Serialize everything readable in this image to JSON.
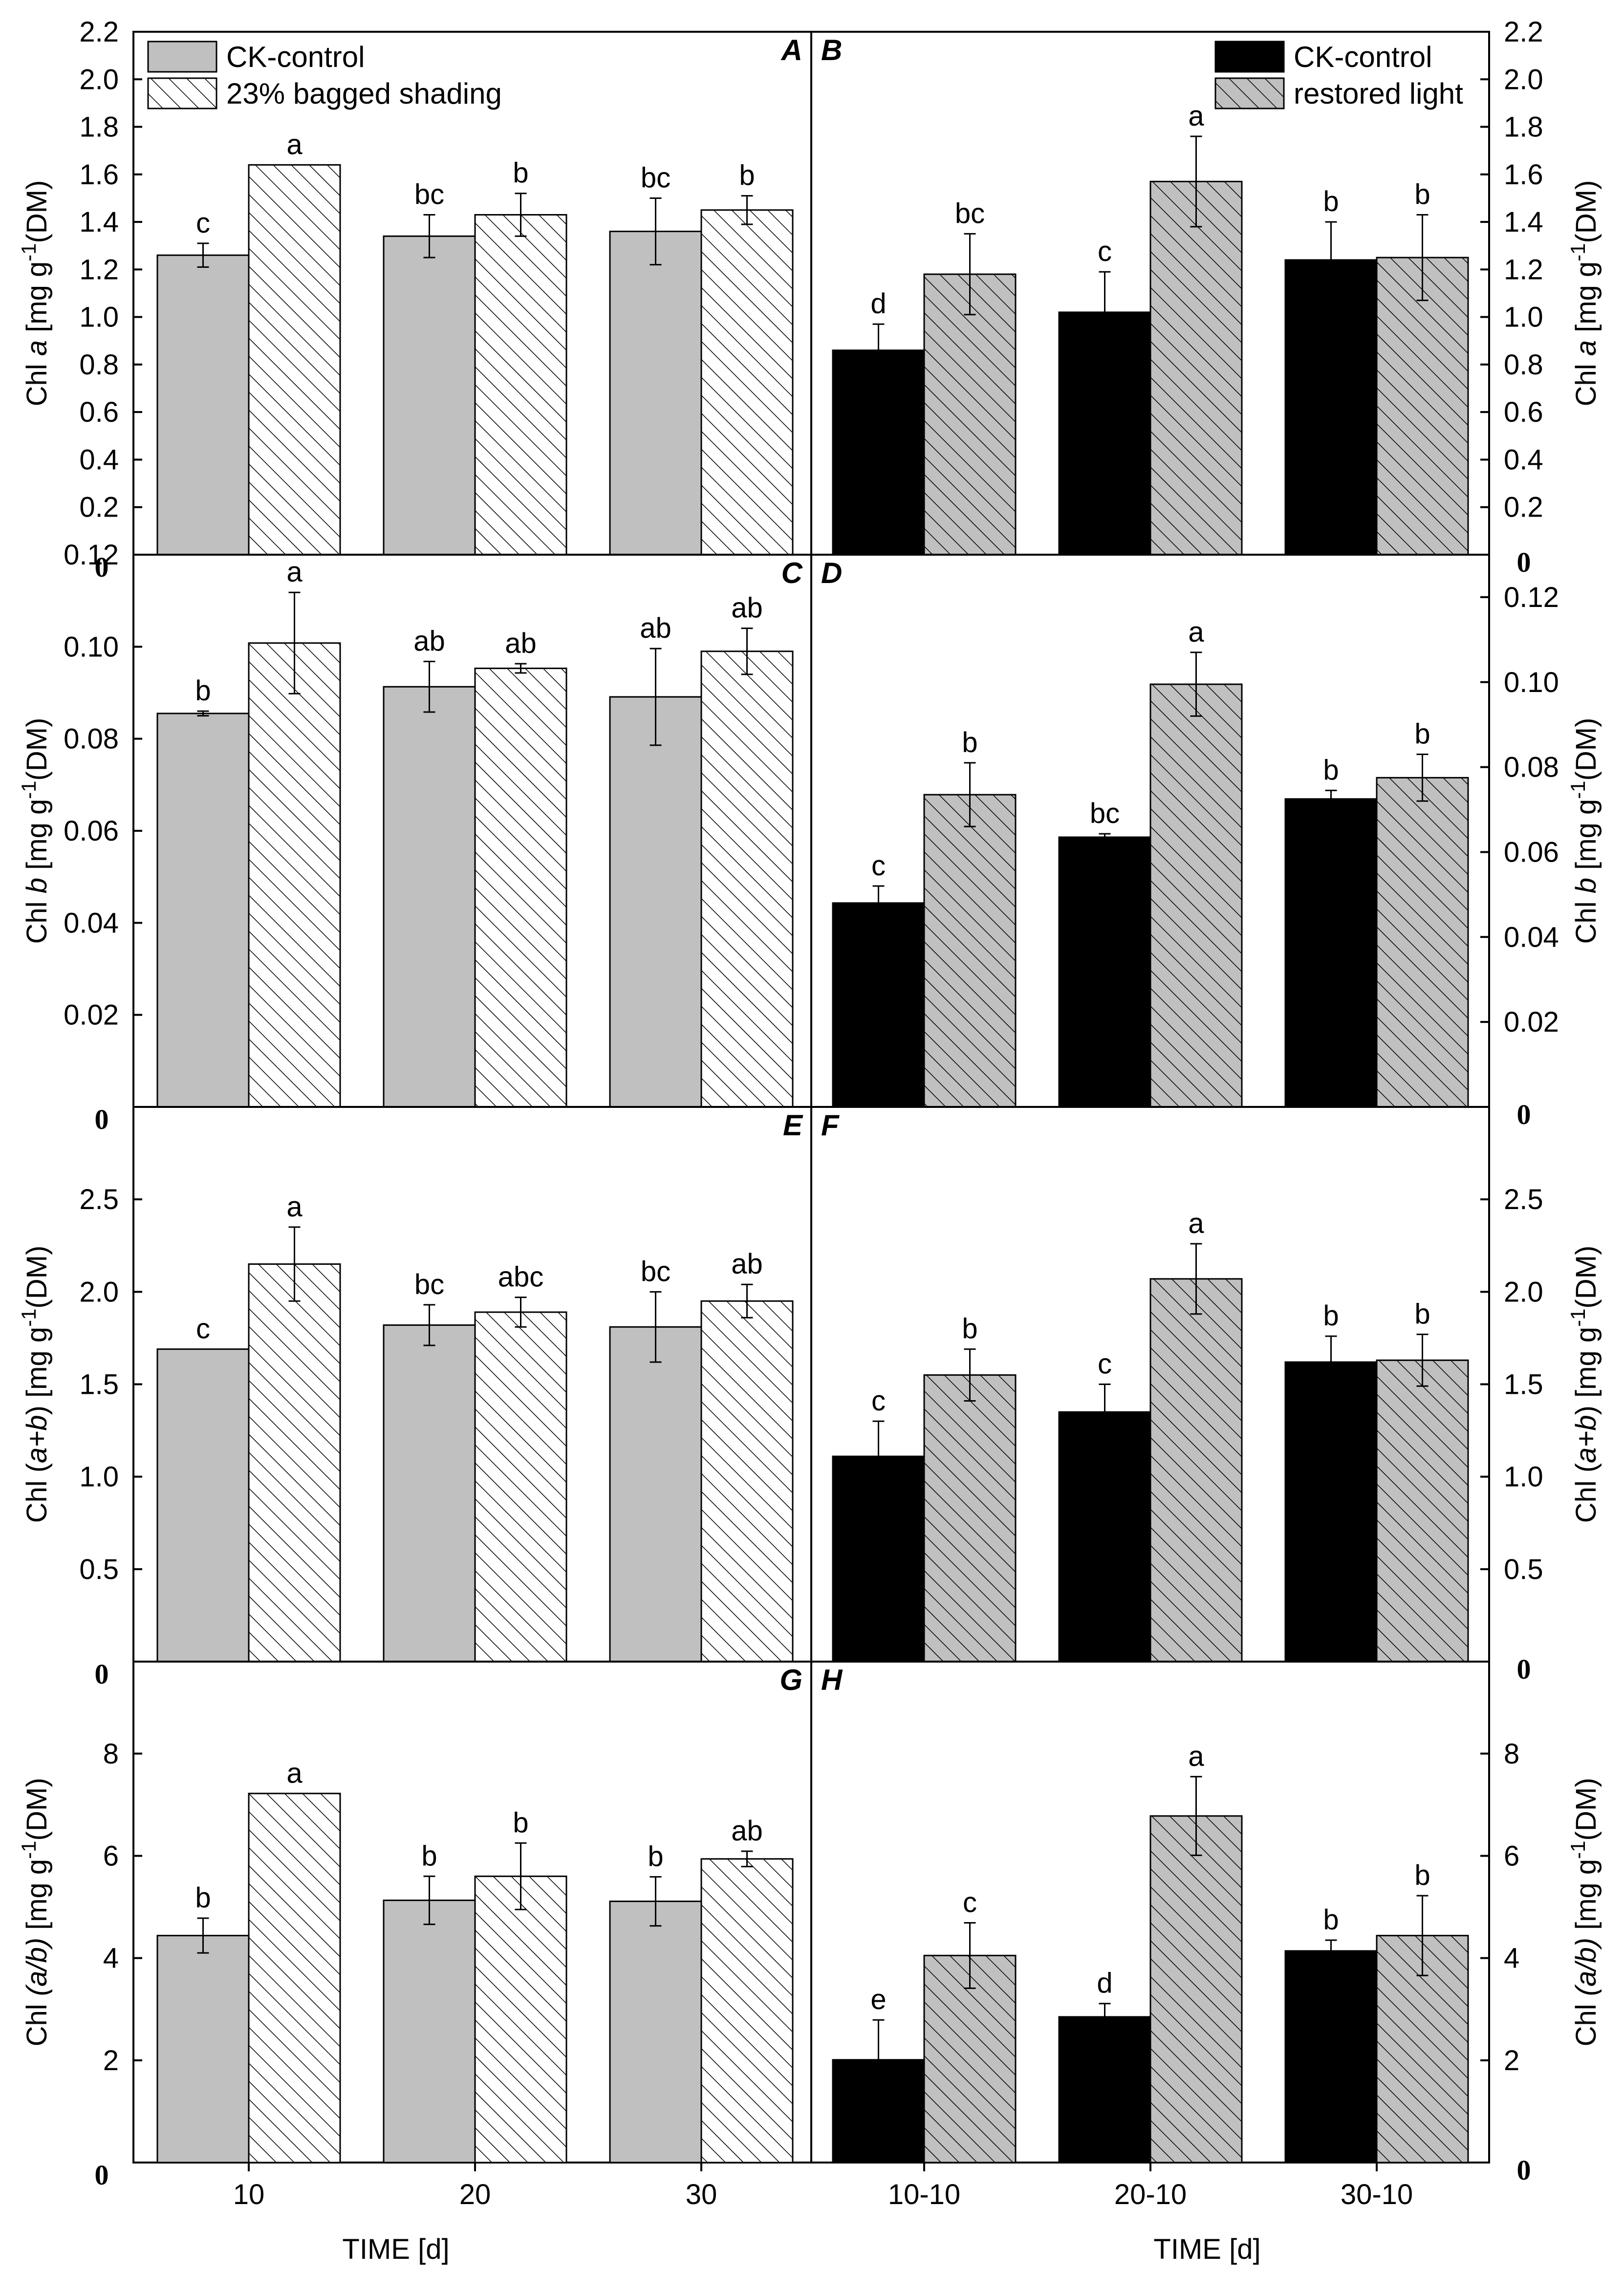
{
  "figure": {
    "xlabel_left": "TIME [d]",
    "xlabel_right": "TIME [d]",
    "zero_label": "0"
  },
  "legends": {
    "left": [
      {
        "label": "CK-control",
        "style": "gray"
      },
      {
        "label": "23% bagged shading",
        "style": "hatch-white"
      }
    ],
    "right": [
      {
        "label": "CK-control",
        "style": "black"
      },
      {
        "label": "restored light",
        "style": "hatch-gray"
      }
    ]
  },
  "colors": {
    "ck_left": "#c0c0c0",
    "ck_right": "#000000",
    "hatch_bg_left": "#ffffff",
    "hatch_bg_right": "#c0c0c0",
    "line": "#000000"
  },
  "chart_data": [
    {
      "type": "bar",
      "panel": "A",
      "side": "left",
      "ylabel": {
        "pre": "Chl ",
        "ital": "a",
        "post": " [mg g",
        "sup": "-1",
        "end": "(DM)"
      },
      "ylim": [
        0,
        2.2
      ],
      "yticks": [
        "0.2",
        "0.4",
        "0.6",
        "0.8",
        "1.0",
        "1.2",
        "1.4",
        "1.6",
        "1.8",
        "2.0",
        "2.2"
      ],
      "ytick_values": [
        0.2,
        0.4,
        0.6,
        0.8,
        1.0,
        1.2,
        1.4,
        1.6,
        1.8,
        2.0,
        2.2
      ],
      "categories": [
        "10",
        "20",
        "30"
      ],
      "series": [
        {
          "name": "CK-control",
          "values": [
            1.26,
            1.34,
            1.36
          ],
          "errors": [
            0.05,
            0.09,
            0.14
          ],
          "letters": [
            "c",
            "bc",
            "bc"
          ]
        },
        {
          "name": "23% bagged shading",
          "values": [
            1.64,
            1.43,
            1.45
          ],
          "errors": [
            0.0,
            0.09,
            0.06
          ],
          "letters": [
            "a",
            "b",
            "b"
          ]
        }
      ]
    },
    {
      "type": "bar",
      "panel": "B",
      "side": "right",
      "ylabel": {
        "pre": "Chl ",
        "ital": "a",
        "post": " [mg g",
        "sup": "-1",
        "end": "(DM)"
      },
      "ylim": [
        0,
        2.2
      ],
      "yticks": [
        "0.2",
        "0.4",
        "0.6",
        "0.8",
        "1.0",
        "1.2",
        "1.4",
        "1.6",
        "1.8",
        "2.0",
        "2.2"
      ],
      "ytick_values": [
        0.2,
        0.4,
        0.6,
        0.8,
        1.0,
        1.2,
        1.4,
        1.6,
        1.8,
        2.0,
        2.2
      ],
      "categories": [
        "10-10",
        "20-10",
        "30-10"
      ],
      "series": [
        {
          "name": "CK-control",
          "values": [
            0.86,
            1.02,
            1.24
          ],
          "errors": [
            0.11,
            0.17,
            0.16
          ],
          "letters": [
            "d",
            "c",
            "b"
          ]
        },
        {
          "name": "restored light",
          "values": [
            1.18,
            1.57,
            1.25
          ],
          "errors": [
            0.17,
            0.19,
            0.18
          ],
          "letters": [
            "bc",
            "a",
            "b"
          ]
        }
      ]
    },
    {
      "type": "bar",
      "panel": "C",
      "side": "left",
      "ylabel": {
        "pre": "Chl ",
        "ital": "b",
        "post": " [mg g",
        "sup": "-1",
        "end": "(DM)"
      },
      "ylim": [
        0,
        0.12
      ],
      "yticks": [
        "0.02",
        "0.04",
        "0.06",
        "0.08",
        "0.10",
        "0.12"
      ],
      "ytick_values": [
        0.02,
        0.04,
        0.06,
        0.08,
        0.1,
        0.12
      ],
      "categories": [
        "10",
        "20",
        "30"
      ],
      "series": [
        {
          "name": "CK-control",
          "values": [
            0.0855,
            0.0913,
            0.0891
          ],
          "errors": [
            0.0005,
            0.0055,
            0.0105
          ],
          "letters": [
            "b",
            "ab",
            "ab"
          ]
        },
        {
          "name": "23% bagged shading",
          "values": [
            0.1008,
            0.0953,
            0.099
          ],
          "errors": [
            0.011,
            0.001,
            0.005
          ],
          "letters": [
            "a",
            "ab",
            "ab"
          ]
        }
      ]
    },
    {
      "type": "bar",
      "panel": "D",
      "side": "right",
      "ylabel": {
        "pre": "Chl ",
        "ital": "b",
        "post": " [mg g",
        "sup": "-1",
        "end": "(DM)"
      },
      "ylim": [
        0,
        0.13
      ],
      "yticks": [
        "0.02",
        "0.04",
        "0.06",
        "0.08",
        "0.10",
        "0.12"
      ],
      "ytick_values": [
        0.02,
        0.04,
        0.06,
        0.08,
        0.1,
        0.12
      ],
      "categories": [
        "10-10",
        "20-10",
        "30-10"
      ],
      "series": [
        {
          "name": "CK-control",
          "values": [
            0.048,
            0.0635,
            0.0725
          ],
          "errors": [
            0.004,
            0.0008,
            0.002
          ],
          "letters": [
            "c",
            "bc",
            "b"
          ]
        },
        {
          "name": "restored light",
          "values": [
            0.0735,
            0.0995,
            0.0775
          ],
          "errors": [
            0.0075,
            0.0075,
            0.0055
          ],
          "letters": [
            "b",
            "a",
            "b"
          ]
        }
      ]
    },
    {
      "type": "bar",
      "panel": "E",
      "side": "left",
      "ylabel": {
        "pre": "Chl (",
        "ital": "a+b",
        "post": ") [mg g",
        "sup": "-1",
        "end": "(DM)"
      },
      "ylim": [
        0,
        3.0
      ],
      "yticks": [
        "0.5",
        "1.0",
        "1.5",
        "2.0",
        "2.5"
      ],
      "ytick_values": [
        0.5,
        1.0,
        1.5,
        2.0,
        2.5
      ],
      "categories": [
        "10",
        "20",
        "30"
      ],
      "series": [
        {
          "name": "CK-control",
          "values": [
            1.69,
            1.82,
            1.81
          ],
          "errors": [
            0.0,
            0.11,
            0.19
          ],
          "letters": [
            "c",
            "bc",
            "bc"
          ]
        },
        {
          "name": "23% bagged shading",
          "values": [
            2.15,
            1.89,
            1.95
          ],
          "errors": [
            0.2,
            0.08,
            0.09
          ],
          "letters": [
            "a",
            "abc",
            "ab"
          ]
        }
      ]
    },
    {
      "type": "bar",
      "panel": "F",
      "side": "right",
      "ylabel": {
        "pre": "Chl (",
        "ital": "a+b",
        "post": ") [mg g",
        "sup": "-1",
        "end": "(DM)"
      },
      "ylim": [
        0,
        3.0
      ],
      "yticks": [
        "0.5",
        "1.0",
        "1.5",
        "2.0",
        "2.5"
      ],
      "ytick_values": [
        0.5,
        1.0,
        1.5,
        2.0,
        2.5
      ],
      "categories": [
        "10-10",
        "20-10",
        "30-10"
      ],
      "series": [
        {
          "name": "CK-control",
          "values": [
            1.11,
            1.35,
            1.62
          ],
          "errors": [
            0.19,
            0.15,
            0.14
          ],
          "letters": [
            "c",
            "c",
            "b"
          ]
        },
        {
          "name": "restored light",
          "values": [
            1.55,
            2.07,
            1.63
          ],
          "errors": [
            0.14,
            0.19,
            0.14
          ],
          "letters": [
            "b",
            "a",
            "b"
          ]
        }
      ]
    },
    {
      "type": "bar",
      "panel": "G",
      "side": "left",
      "ylabel": {
        "pre": "Chl ",
        "ital": "(a/b)",
        "post": " [mg g",
        "sup": "-1",
        "end": "(DM)"
      },
      "ylim": [
        0,
        9.8
      ],
      "yticks": [
        "2",
        "4",
        "6",
        "8"
      ],
      "ytick_values": [
        2,
        4,
        6,
        8
      ],
      "categories": [
        "10",
        "20",
        "30"
      ],
      "series": [
        {
          "name": "CK-control",
          "values": [
            4.44,
            5.13,
            5.11
          ],
          "errors": [
            0.34,
            0.47,
            0.48
          ],
          "letters": [
            "b",
            "b",
            "b"
          ]
        },
        {
          "name": "23% bagged shading",
          "values": [
            7.22,
            5.6,
            5.94
          ],
          "errors": [
            0.0,
            0.65,
            0.15
          ],
          "letters": [
            "a",
            "b",
            "ab"
          ]
        }
      ]
    },
    {
      "type": "bar",
      "panel": "H",
      "side": "right",
      "ylabel": {
        "pre": "Chl ",
        "ital": "(a/b)",
        "post": " [mg g",
        "sup": "-1",
        "end": "(DM)"
      },
      "ylim": [
        0,
        9.8
      ],
      "yticks": [
        "2",
        "4",
        "6",
        "8"
      ],
      "ytick_values": [
        2,
        4,
        6,
        8
      ],
      "categories": [
        "10-10",
        "20-10",
        "30-10"
      ],
      "series": [
        {
          "name": "CK-control",
          "values": [
            2.01,
            2.85,
            4.14
          ],
          "errors": [
            0.78,
            0.26,
            0.21
          ],
          "letters": [
            "e",
            "d",
            "b"
          ]
        },
        {
          "name": "restored light",
          "values": [
            4.05,
            6.78,
            4.44
          ],
          "errors": [
            0.64,
            0.77,
            0.78
          ],
          "letters": [
            "c",
            "a",
            "b"
          ]
        }
      ]
    }
  ]
}
